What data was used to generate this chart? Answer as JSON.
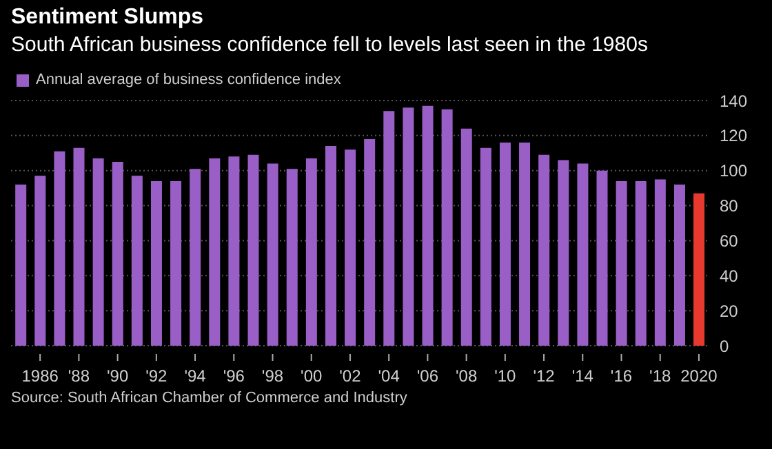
{
  "chart_data": {
    "type": "bar",
    "title": "Sentiment Slumps",
    "subtitle": "South African business confidence fell to levels last seen in the 1980s",
    "categories": [
      null,
      "1986",
      null,
      "'88",
      null,
      "'90",
      null,
      "'92",
      null,
      "'94",
      null,
      "'96",
      null,
      "'98",
      null,
      "'00",
      null,
      "'02",
      null,
      "'04",
      null,
      "'06",
      null,
      "'08",
      null,
      "'10",
      null,
      "'12",
      null,
      "'14",
      null,
      "'16",
      null,
      "'18",
      null,
      "2020"
    ],
    "series": [
      {
        "name": "Annual average of business confidence index",
        "color": "#9a5fc6",
        "values": [
          92,
          97,
          111,
          113,
          107,
          105,
          97,
          94,
          94,
          101,
          107,
          108,
          109,
          104,
          101,
          107,
          114,
          112,
          118,
          134,
          136,
          137,
          135,
          124,
          113,
          116,
          116,
          109,
          106,
          104,
          100,
          94,
          94,
          95,
          92,
          87
        ],
        "colors": [
          "#9a5fc6",
          "#9a5fc6",
          "#9a5fc6",
          "#9a5fc6",
          "#9a5fc6",
          "#9a5fc6",
          "#9a5fc6",
          "#9a5fc6",
          "#9a5fc6",
          "#9a5fc6",
          "#9a5fc6",
          "#9a5fc6",
          "#9a5fc6",
          "#9a5fc6",
          "#9a5fc6",
          "#9a5fc6",
          "#9a5fc6",
          "#9a5fc6",
          "#9a5fc6",
          "#9a5fc6",
          "#9a5fc6",
          "#9a5fc6",
          "#9a5fc6",
          "#9a5fc6",
          "#9a5fc6",
          "#9a5fc6",
          "#9a5fc6",
          "#9a5fc6",
          "#9a5fc6",
          "#9a5fc6",
          "#9a5fc6",
          "#9a5fc6",
          "#9a5fc6",
          "#9a5fc6",
          "#9a5fc6",
          "#e8392f"
        ]
      }
    ],
    "ylim": [
      0,
      140
    ],
    "yticks": [
      0,
      20,
      40,
      60,
      80,
      100,
      120,
      140
    ],
    "grid": "y",
    "legend": "top left",
    "annotations": [
      "Source: South African Chamber of Commerce and Industry"
    ]
  }
}
